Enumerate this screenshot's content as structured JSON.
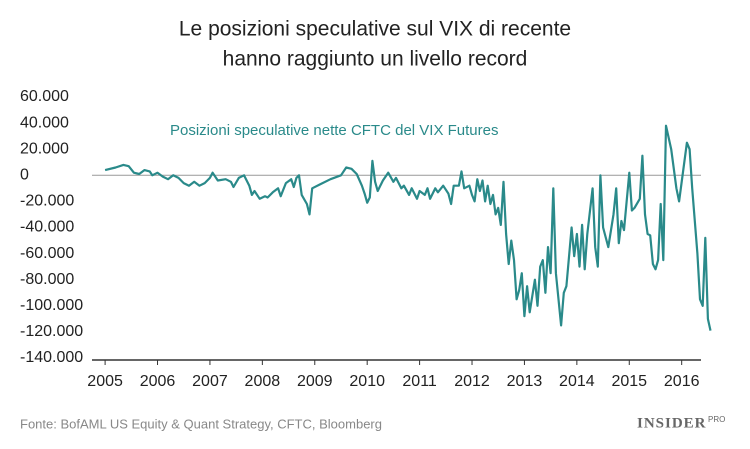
{
  "chart_data": {
    "type": "line",
    "title": [
      "Le posizioni speculative sul VIX di recente",
      "hanno raggiunto un livello record"
    ],
    "source": "Fonte: BofAML US Equity & Quant Strategy, CFTC, Bloomberg",
    "logo": {
      "text": "INSIDER",
      "badge": "PRO"
    },
    "x": [
      2005.0,
      2005.2,
      2005.35,
      2005.45,
      2005.55,
      2005.65,
      2005.75,
      2005.85,
      2005.9,
      2006.0,
      2006.1,
      2006.2,
      2006.3,
      2006.4,
      2006.5,
      2006.6,
      2006.7,
      2006.8,
      2006.9,
      2007.0,
      2007.05,
      2007.15,
      2007.3,
      2007.4,
      2007.45,
      2007.55,
      2007.65,
      2007.75,
      2007.8,
      2007.85,
      2007.95,
      2008.05,
      2008.1,
      2008.2,
      2008.3,
      2008.35,
      2008.45,
      2008.55,
      2008.6,
      2008.65,
      2008.7,
      2008.75,
      2008.85,
      2008.9,
      2008.95,
      2009.1,
      2009.3,
      2009.5,
      2009.6,
      2009.7,
      2009.8,
      2009.9,
      2009.95,
      2010.0,
      2010.05,
      2010.1,
      2010.15,
      2010.2,
      2010.3,
      2010.4,
      2010.5,
      2010.55,
      2010.65,
      2010.7,
      2010.8,
      2010.85,
      2010.95,
      2011.0,
      2011.1,
      2011.15,
      2011.2,
      2011.3,
      2011.35,
      2011.45,
      2011.55,
      2011.6,
      2011.65,
      2011.75,
      2011.8,
      2011.85,
      2011.95,
      2012.0,
      2012.05,
      2012.1,
      2012.15,
      2012.2,
      2012.25,
      2012.3,
      2012.35,
      2012.4,
      2012.45,
      2012.5,
      2012.55,
      2012.6,
      2012.65,
      2012.7,
      2012.75,
      2012.8,
      2012.85,
      2012.9,
      2012.95,
      2013.0,
      2013.05,
      2013.1,
      2013.2,
      2013.25,
      2013.3,
      2013.35,
      2013.4,
      2013.45,
      2013.5,
      2013.55,
      2013.6,
      2013.7,
      2013.75,
      2013.8,
      2013.9,
      2013.95,
      2014.0,
      2014.05,
      2014.1,
      2014.15,
      2014.2,
      2014.3,
      2014.35,
      2014.4,
      2014.45,
      2014.5,
      2014.6,
      2014.7,
      2014.75,
      2014.8,
      2014.85,
      2014.9,
      2015.0,
      2015.05,
      2015.1,
      2015.2,
      2015.25,
      2015.3,
      2015.35,
      2015.4,
      2015.45,
      2015.5,
      2015.55,
      2015.6,
      2015.65,
      2015.7,
      2015.8,
      2015.9,
      2015.95,
      2016.0,
      2016.1,
      2016.15,
      2016.2,
      2016.3,
      2016.35,
      2016.4,
      2016.45,
      2016.5,
      2016.55
    ],
    "series": [
      {
        "name": "Posizioni speculative nette CFTC del VIX Futures",
        "color": "#2a8a8a",
        "values": [
          4000,
          6000,
          8000,
          7000,
          2000,
          1000,
          4000,
          3000,
          0,
          2000,
          -1000,
          -3000,
          0,
          -2000,
          -6000,
          -8000,
          -5000,
          -8000,
          -6000,
          -2000,
          2000,
          -4000,
          -3000,
          -5000,
          -9000,
          -2000,
          0,
          -8000,
          -15000,
          -12000,
          -18000,
          -16000,
          -17000,
          -13000,
          -10000,
          -16000,
          -6000,
          -3000,
          -9000,
          -2000,
          0,
          -15000,
          -22000,
          -30000,
          -10000,
          -7000,
          -3000,
          0,
          6000,
          5000,
          1000,
          -8000,
          -14000,
          -21000,
          -17000,
          11000,
          -5000,
          -12000,
          -4000,
          2000,
          -5000,
          -2000,
          -10000,
          -8000,
          -15000,
          -10000,
          -18000,
          -12000,
          -15000,
          -10000,
          -18000,
          -10000,
          -13000,
          -8000,
          -14000,
          -22000,
          -8000,
          -8000,
          3000,
          -10000,
          -8000,
          -15000,
          -20000,
          -3000,
          -12000,
          -4000,
          -20000,
          -8000,
          -22000,
          -15000,
          -30000,
          -25000,
          -38000,
          -5000,
          -45000,
          -68000,
          -50000,
          -65000,
          -95000,
          -88000,
          -75000,
          -108000,
          -85000,
          -105000,
          -80000,
          -100000,
          -70000,
          -65000,
          -90000,
          -55000,
          -75000,
          -10000,
          -75000,
          -115000,
          -90000,
          -85000,
          -40000,
          -62000,
          -45000,
          -70000,
          -38000,
          -72000,
          -45000,
          -10000,
          -55000,
          -70000,
          0,
          -40000,
          -55000,
          -30000,
          -10000,
          -52000,
          -35000,
          -42000,
          2000,
          -27000,
          -25000,
          -18000,
          15000,
          -30000,
          -45000,
          -46000,
          -68000,
          -72000,
          -65000,
          -22000,
          -65000,
          38000,
          20000,
          -10000,
          -20000,
          -5000,
          25000,
          20000,
          -10000,
          -60000,
          -95000,
          -100000,
          -48000,
          -110000,
          -119000
        ]
      }
    ],
    "xlim": [
      2004.75,
      2016.75
    ],
    "xticks": [
      2005,
      2006,
      2007,
      2008,
      2009,
      2010,
      2011,
      2012,
      2013,
      2014,
      2015,
      2016
    ],
    "ylim": [
      -140000,
      60000
    ],
    "yticks": [
      {
        "value": -140000,
        "label": "-140.000"
      },
      {
        "value": -120000,
        "label": "-120.000"
      },
      {
        "value": -100000,
        "label": "-100.000"
      },
      {
        "value": -80000,
        "label": "-80.000"
      },
      {
        "value": -60000,
        "label": "-60.000"
      },
      {
        "value": -40000,
        "label": "-40.000"
      },
      {
        "value": -20000,
        "label": "-20.000"
      },
      0,
      {
        "value": 20000,
        "label": "20.000"
      },
      {
        "value": 40000,
        "label": "40.000"
      },
      {
        "value": 60000,
        "label": "60.000"
      }
    ],
    "zero_line": true
  }
}
